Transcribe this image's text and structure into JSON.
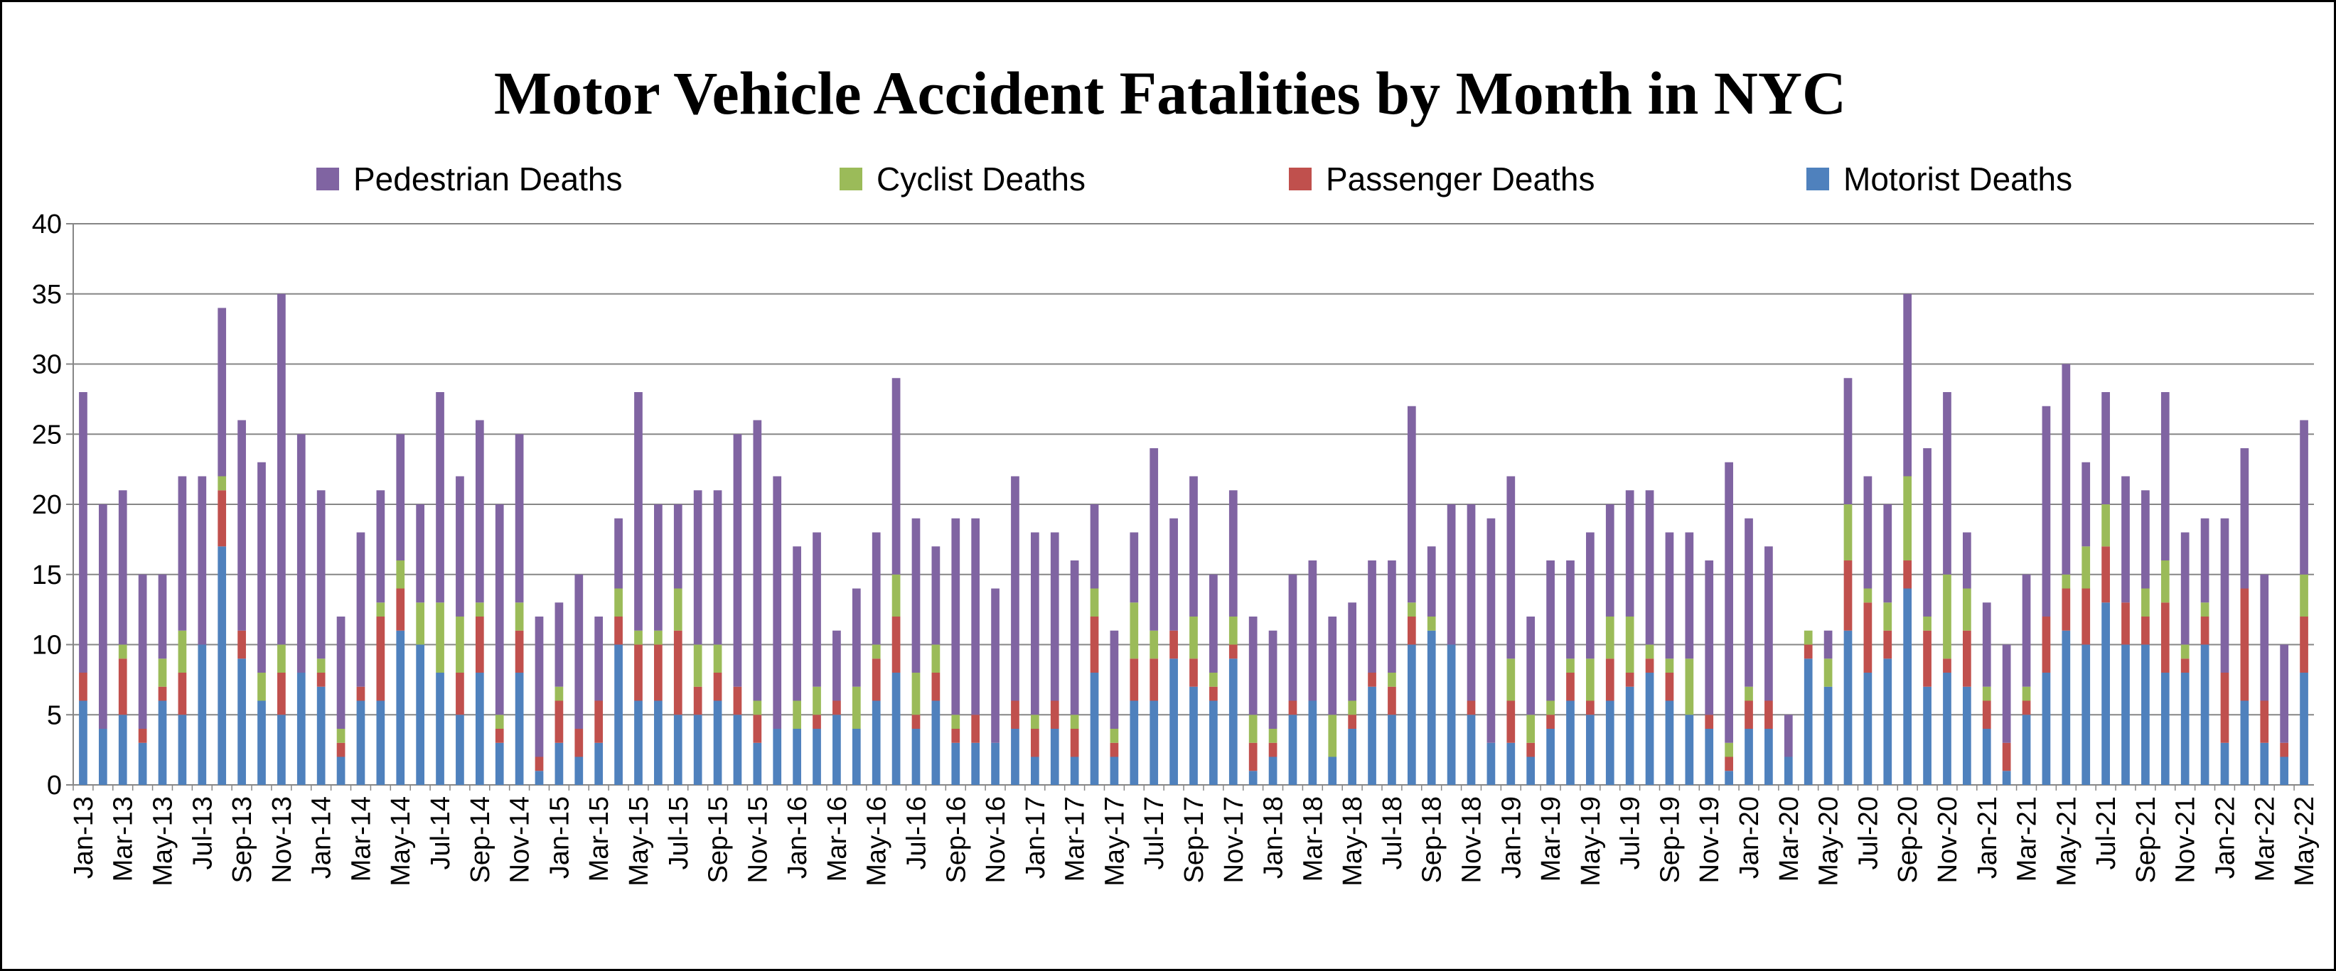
{
  "chart_data": {
    "type": "bar",
    "stacked": true,
    "title": "Motor Vehicle Accident Fatalities by Month in NYC",
    "xlabel": "",
    "ylabel": "",
    "ylim": [
      0,
      40
    ],
    "y_ticks": [
      0,
      5,
      10,
      15,
      20,
      25,
      30,
      35,
      40
    ],
    "grid": true,
    "legend_position": "top",
    "categories": [
      "Jan-13",
      "Feb-13",
      "Mar-13",
      "Apr-13",
      "May-13",
      "Jun-13",
      "Jul-13",
      "Aug-13",
      "Sep-13",
      "Oct-13",
      "Nov-13",
      "Dec-13",
      "Jan-14",
      "Feb-14",
      "Mar-14",
      "Apr-14",
      "May-14",
      "Jun-14",
      "Jul-14",
      "Aug-14",
      "Sep-14",
      "Oct-14",
      "Nov-14",
      "Dec-14",
      "Jan-15",
      "Feb-15",
      "Mar-15",
      "Apr-15",
      "May-15",
      "Jun-15",
      "Jul-15",
      "Aug-15",
      "Sep-15",
      "Oct-15",
      "Nov-15",
      "Dec-15",
      "Jan-16",
      "Feb-16",
      "Mar-16",
      "Apr-16",
      "May-16",
      "Jun-16",
      "Jul-16",
      "Aug-16",
      "Sep-16",
      "Oct-16",
      "Nov-16",
      "Dec-16",
      "Jan-17",
      "Feb-17",
      "Mar-17",
      "Apr-17",
      "May-17",
      "Jun-17",
      "Jul-17",
      "Aug-17",
      "Sep-17",
      "Oct-17",
      "Nov-17",
      "Dec-17",
      "Jan-18",
      "Feb-18",
      "Mar-18",
      "Apr-18",
      "May-18",
      "Jun-18",
      "Jul-18",
      "Aug-18",
      "Sep-18",
      "Oct-18",
      "Nov-18",
      "Dec-18",
      "Jan-19",
      "Feb-19",
      "Mar-19",
      "Apr-19",
      "May-19",
      "Jun-19",
      "Jul-19",
      "Aug-19",
      "Sep-19",
      "Oct-19",
      "Nov-19",
      "Dec-19",
      "Jan-20",
      "Feb-20",
      "Mar-20",
      "Apr-20",
      "May-20",
      "Jun-20",
      "Jul-20",
      "Aug-20",
      "Sep-20",
      "Oct-20",
      "Nov-20",
      "Dec-20",
      "Jan-21",
      "Feb-21",
      "Mar-21",
      "Apr-21",
      "May-21",
      "Jun-21",
      "Jul-21",
      "Aug-21",
      "Sep-21",
      "Oct-21",
      "Nov-21",
      "Dec-21",
      "Jan-22",
      "Feb-22",
      "Mar-22",
      "Apr-22",
      "May-22"
    ],
    "series": [
      {
        "name": "Motorist Deaths",
        "color": "#4f81bd",
        "values": [
          6,
          4,
          5,
          3,
          6,
          5,
          10,
          17,
          9,
          6,
          5,
          8,
          7,
          2,
          6,
          6,
          11,
          10,
          8,
          5,
          8,
          3,
          8,
          1,
          3,
          2,
          3,
          10,
          6,
          6,
          5,
          5,
          6,
          5,
          3,
          4,
          4,
          4,
          5,
          4,
          6,
          8,
          4,
          6,
          3,
          3,
          3,
          4,
          2,
          4,
          2,
          8,
          2,
          6,
          6,
          9,
          7,
          6,
          9,
          1,
          2,
          5,
          6,
          2,
          4,
          7,
          5,
          10,
          11,
          10,
          5,
          3,
          3,
          2,
          4,
          6,
          5,
          6,
          7,
          8,
          6,
          5,
          4,
          1,
          4,
          4,
          2,
          9,
          7,
          11,
          8,
          9,
          14,
          7,
          8,
          7,
          4,
          1,
          5,
          8,
          11,
          10,
          13,
          10,
          10,
          8,
          8,
          10,
          3,
          6,
          3,
          2,
          8
        ]
      },
      {
        "name": "Passenger Deaths",
        "color": "#c0504d",
        "values": [
          2,
          0,
          4,
          1,
          1,
          3,
          0,
          4,
          2,
          0,
          3,
          0,
          1,
          1,
          1,
          6,
          3,
          0,
          0,
          3,
          4,
          1,
          3,
          1,
          3,
          2,
          3,
          2,
          4,
          4,
          6,
          2,
          2,
          2,
          2,
          0,
          0,
          1,
          1,
          0,
          3,
          4,
          1,
          2,
          1,
          2,
          0,
          2,
          2,
          2,
          2,
          4,
          1,
          3,
          3,
          2,
          2,
          1,
          1,
          2,
          1,
          1,
          0,
          0,
          1,
          1,
          2,
          2,
          0,
          0,
          1,
          0,
          3,
          1,
          1,
          2,
          1,
          3,
          1,
          1,
          2,
          0,
          1,
          1,
          2,
          2,
          0,
          1,
          0,
          5,
          5,
          2,
          2,
          4,
          1,
          4,
          2,
          2,
          1,
          4,
          3,
          4,
          4,
          3,
          2,
          5,
          1,
          2,
          5,
          8,
          3,
          1,
          4
        ]
      },
      {
        "name": "Cyclist Deaths",
        "color": "#9bbb59",
        "values": [
          0,
          0,
          1,
          0,
          2,
          3,
          0,
          1,
          0,
          2,
          2,
          0,
          1,
          1,
          0,
          1,
          2,
          3,
          5,
          4,
          1,
          1,
          2,
          0,
          1,
          0,
          0,
          2,
          1,
          1,
          3,
          3,
          2,
          0,
          1,
          0,
          2,
          2,
          0,
          3,
          1,
          3,
          3,
          2,
          1,
          0,
          0,
          0,
          1,
          0,
          1,
          2,
          1,
          4,
          2,
          0,
          3,
          1,
          2,
          2,
          1,
          0,
          0,
          3,
          1,
          0,
          1,
          1,
          1,
          0,
          0,
          0,
          3,
          2,
          1,
          1,
          3,
          3,
          4,
          1,
          1,
          4,
          0,
          1,
          1,
          0,
          0,
          1,
          2,
          4,
          1,
          2,
          6,
          1,
          6,
          3,
          1,
          0,
          1,
          0,
          1,
          3,
          3,
          0,
          2,
          3,
          1,
          1,
          0,
          0,
          0,
          0,
          3
        ]
      },
      {
        "name": "Pedestrian Deaths",
        "color": "#8064a2",
        "values": [
          20,
          16,
          11,
          11,
          6,
          11,
          12,
          12,
          15,
          15,
          25,
          17,
          12,
          8,
          11,
          8,
          9,
          7,
          15,
          10,
          13,
          15,
          12,
          10,
          6,
          11,
          6,
          5,
          17,
          9,
          6,
          11,
          11,
          18,
          20,
          18,
          11,
          11,
          5,
          7,
          8,
          14,
          11,
          7,
          14,
          14,
          11,
          16,
          13,
          12,
          11,
          6,
          7,
          5,
          13,
          8,
          10,
          7,
          9,
          7,
          7,
          9,
          10,
          7,
          7,
          8,
          8,
          14,
          5,
          10,
          14,
          16,
          13,
          7,
          10,
          7,
          9,
          8,
          9,
          11,
          9,
          9,
          11,
          20,
          12,
          11,
          3,
          0,
          2,
          9,
          8,
          7,
          13,
          12,
          13,
          4,
          6,
          7,
          8,
          15,
          15,
          6,
          8,
          9,
          7,
          12,
          8,
          6,
          11,
          10,
          9,
          7,
          11
        ]
      }
    ]
  }
}
